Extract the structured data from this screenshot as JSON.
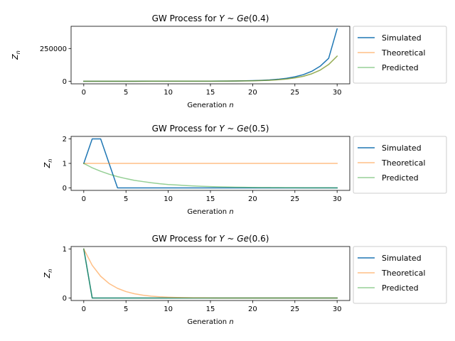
{
  "chart_data": [
    {
      "type": "line",
      "title": "GW Process for $Y \\sim Ge(0.4)$",
      "title_prefix": "GW Process for ",
      "title_var": "Y",
      "title_tilde": " ~ ",
      "title_dist": "Ge",
      "title_param": "(0.4)",
      "xlabel_main": "Generation ",
      "xlabel_var": "n",
      "ylabel_main": "Z",
      "ylabel_sub": "n",
      "xlim": [
        -1.5,
        31.5
      ],
      "ylim": [
        -20000,
        420000
      ],
      "xticks": [
        0,
        5,
        10,
        15,
        20,
        25,
        30
      ],
      "xtick_labels": [
        "0",
        "5",
        "10",
        "15",
        "20",
        "25",
        "30"
      ],
      "yticks": [
        0,
        250000
      ],
      "ytick_labels": [
        "0",
        "250000"
      ],
      "legend_position": "outside-right",
      "x": [
        0,
        1,
        2,
        3,
        4,
        5,
        6,
        7,
        8,
        9,
        10,
        11,
        12,
        13,
        14,
        15,
        16,
        17,
        18,
        19,
        20,
        21,
        22,
        23,
        24,
        25,
        26,
        27,
        28,
        29,
        30
      ],
      "series": [
        {
          "name": "Simulated",
          "color": "#1f77b4",
          "alpha": 1.0,
          "values": [
            1,
            2,
            3,
            4,
            6,
            10,
            15,
            22,
            33,
            50,
            75,
            113,
            170,
            256,
            384,
            580,
            870,
            1306,
            1960,
            2940,
            4410,
            6620,
            9930,
            15000,
            22300,
            33500,
            50200,
            76000,
            115000,
            175000,
            400000
          ]
        },
        {
          "name": "Theoretical",
          "color": "#ff7f0e",
          "alpha": 0.5,
          "values": [
            1,
            1.5,
            2.25,
            3.4,
            5.1,
            7.6,
            11.4,
            17.1,
            25.6,
            38.4,
            57.7,
            86.5,
            130,
            195,
            292,
            438,
            657,
            985,
            1478,
            2217,
            3325,
            4988,
            7482,
            11223,
            16834,
            25251,
            37877,
            56815,
            85223,
            127834,
            191751
          ]
        },
        {
          "name": "Predicted",
          "color": "#2ca02c",
          "alpha": 0.5,
          "values": [
            1,
            1.5,
            2.25,
            3.4,
            5.1,
            7.6,
            11.4,
            17.1,
            25.6,
            38.4,
            57.7,
            86.5,
            130,
            195,
            292,
            438,
            657,
            985,
            1478,
            2217,
            3325,
            4988,
            7482,
            11223,
            16834,
            25251,
            37877,
            56815,
            85223,
            127834,
            191751
          ]
        }
      ]
    },
    {
      "type": "line",
      "title": "GW Process for $Y \\sim Ge(0.5)$",
      "title_prefix": "GW Process for ",
      "title_var": "Y",
      "title_tilde": " ~ ",
      "title_dist": "Ge",
      "title_param": "(0.5)",
      "xlabel_main": "Generation ",
      "xlabel_var": "n",
      "ylabel_main": "Z",
      "ylabel_sub": "n",
      "xlim": [
        -1.5,
        31.5
      ],
      "ylim": [
        -0.1,
        2.1
      ],
      "xticks": [
        0,
        5,
        10,
        15,
        20,
        25,
        30
      ],
      "xtick_labels": [
        "0",
        "5",
        "10",
        "15",
        "20",
        "25",
        "30"
      ],
      "yticks": [
        0,
        1,
        2
      ],
      "ytick_labels": [
        "0",
        "1",
        "2"
      ],
      "legend_position": "outside-right",
      "x": [
        0,
        1,
        2,
        3,
        4,
        5,
        6,
        7,
        8,
        9,
        10,
        11,
        12,
        13,
        14,
        15,
        16,
        17,
        18,
        19,
        20,
        21,
        22,
        23,
        24,
        25,
        26,
        27,
        28,
        29,
        30
      ],
      "series": [
        {
          "name": "Simulated",
          "color": "#1f77b4",
          "alpha": 1.0,
          "values": [
            1,
            2,
            2,
            1,
            0,
            0,
            0,
            0,
            0,
            0,
            0,
            0,
            0,
            0,
            0,
            0,
            0,
            0,
            0,
            0,
            0,
            0,
            0,
            0,
            0,
            0,
            0,
            0,
            0,
            0,
            0
          ]
        },
        {
          "name": "Theoretical",
          "color": "#ff7f0e",
          "alpha": 0.5,
          "values": [
            1,
            1,
            1,
            1,
            1,
            1,
            1,
            1,
            1,
            1,
            1,
            1,
            1,
            1,
            1,
            1,
            1,
            1,
            1,
            1,
            1,
            1,
            1,
            1,
            1,
            1,
            1,
            1,
            1,
            1,
            1
          ]
        },
        {
          "name": "Predicted",
          "color": "#2ca02c",
          "alpha": 0.5,
          "values": [
            1,
            0.82,
            0.68,
            0.56,
            0.46,
            0.38,
            0.31,
            0.26,
            0.21,
            0.17,
            0.14,
            0.12,
            0.1,
            0.08,
            0.066,
            0.054,
            0.045,
            0.037,
            0.03,
            0.025,
            0.02,
            0.017,
            0.014,
            0.011,
            0.009,
            0.0076,
            0.0062,
            0.0051,
            0.0042,
            0.0035,
            0.0028
          ]
        }
      ]
    },
    {
      "type": "line",
      "title": "GW Process for $Y \\sim Ge(0.6)$",
      "title_prefix": "GW Process for ",
      "title_var": "Y",
      "title_tilde": " ~ ",
      "title_dist": "Ge",
      "title_param": "(0.6)",
      "xlabel_main": "Generation ",
      "xlabel_var": "n",
      "ylabel_main": "Z",
      "ylabel_sub": "n",
      "xlim": [
        -1.5,
        31.5
      ],
      "ylim": [
        -0.05,
        1.05
      ],
      "xticks": [
        0,
        5,
        10,
        15,
        20,
        25,
        30
      ],
      "xtick_labels": [
        "0",
        "5",
        "10",
        "15",
        "20",
        "25",
        "30"
      ],
      "yticks": [
        0,
        1
      ],
      "ytick_labels": [
        "0",
        "1"
      ],
      "legend_position": "outside-right",
      "x": [
        0,
        1,
        2,
        3,
        4,
        5,
        6,
        7,
        8,
        9,
        10,
        11,
        12,
        13,
        14,
        15,
        16,
        17,
        18,
        19,
        20,
        21,
        22,
        23,
        24,
        25,
        26,
        27,
        28,
        29,
        30
      ],
      "series": [
        {
          "name": "Simulated",
          "color": "#1f77b4",
          "alpha": 1.0,
          "values": [
            1,
            0,
            0,
            0,
            0,
            0,
            0,
            0,
            0,
            0,
            0,
            0,
            0,
            0,
            0,
            0,
            0,
            0,
            0,
            0,
            0,
            0,
            0,
            0,
            0,
            0,
            0,
            0,
            0,
            0,
            0
          ]
        },
        {
          "name": "Theoretical",
          "color": "#ff7f0e",
          "alpha": 0.5,
          "values": [
            1,
            0.667,
            0.444,
            0.296,
            0.198,
            0.132,
            0.088,
            0.059,
            0.039,
            0.026,
            0.017,
            0.0116,
            0.0077,
            0.0051,
            0.0034,
            0.0023,
            0.0015,
            0.001,
            0.0007,
            0.0005,
            0.0003,
            0.0002,
            0.0001,
            0.0001,
            0,
            0,
            0,
            0,
            0,
            0,
            0
          ]
        },
        {
          "name": "Predicted",
          "color": "#2ca02c",
          "alpha": 0.5,
          "values": [
            1,
            0,
            0,
            0,
            0,
            0,
            0,
            0,
            0,
            0,
            0,
            0,
            0,
            0,
            0,
            0,
            0,
            0,
            0,
            0,
            0,
            0,
            0,
            0,
            0,
            0,
            0,
            0,
            0,
            0,
            0
          ]
        }
      ]
    }
  ]
}
